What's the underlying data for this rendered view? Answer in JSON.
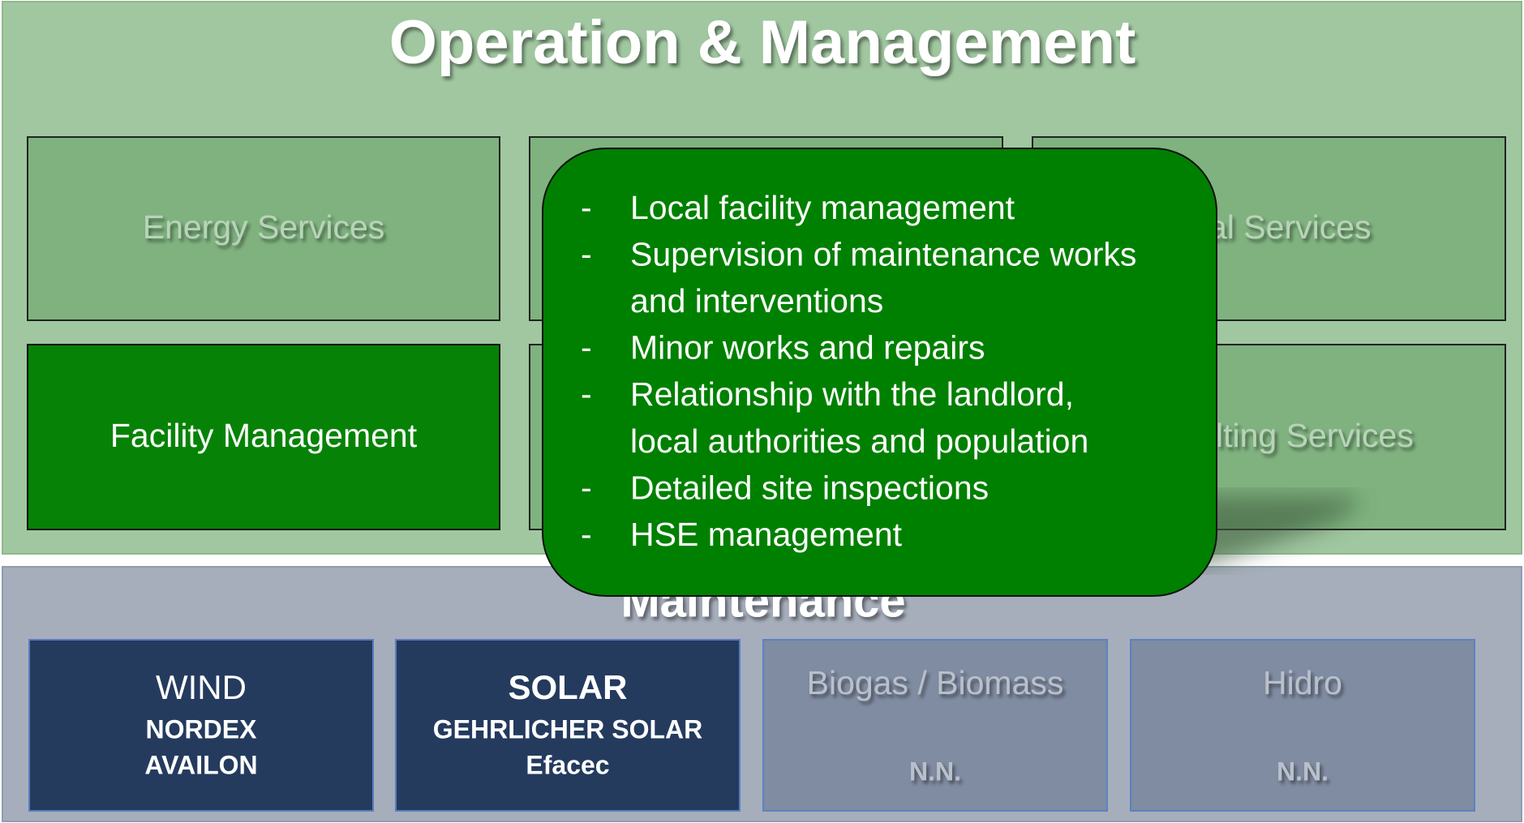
{
  "top_panel": {
    "title": "Operation & Management",
    "boxes": [
      {
        "label": "Energy Services"
      },
      {
        "label": "al Services"
      },
      {
        "label": "Facility Management"
      },
      {
        "label": "lting Services"
      }
    ]
  },
  "bottom_panel": {
    "title": "Maintenance",
    "boxes": [
      {
        "title": "WIND",
        "lines": [
          "NORDEX",
          "AVAILON"
        ]
      },
      {
        "title": "SOLAR",
        "lines": [
          "GEHRLICHER SOLAR",
          "Efacec"
        ]
      },
      {
        "title": "Biogas / Biomass",
        "lines": [
          "N.N."
        ]
      },
      {
        "title": "Hidro",
        "lines": [
          "N.N."
        ]
      }
    ]
  },
  "popup": {
    "bullet": "-",
    "items": [
      [
        "Local facility management"
      ],
      [
        "Supervision of maintenance works",
        "and interventions"
      ],
      [
        "Minor works and repairs"
      ],
      [
        "Relationship with the landlord,",
        "local authorities and population"
      ],
      [
        "Detailed site inspections"
      ],
      [
        "HSE management"
      ]
    ]
  }
}
